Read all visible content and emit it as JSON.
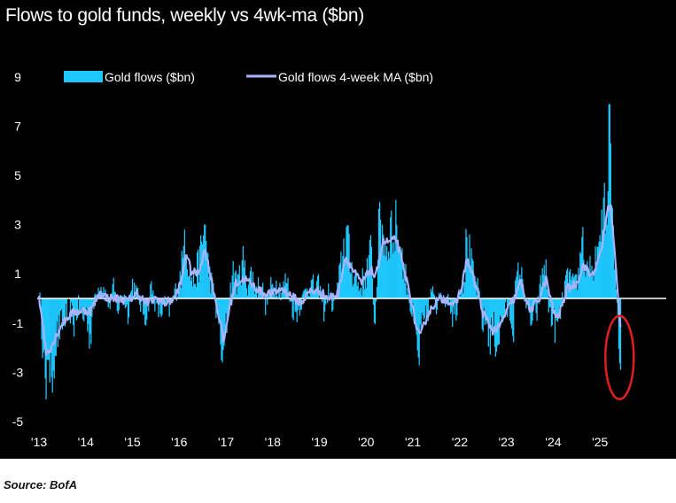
{
  "chart_data": {
    "type": "bar",
    "title": "Flows to gold funds, weekly vs 4wk-ma ($bn)",
    "source": "Source: BofA",
    "xlabel": "",
    "ylabel": "",
    "x_ticks": [
      "'13",
      "'14",
      "'15",
      "'16",
      "'17",
      "'18",
      "'19",
      "'20",
      "'21",
      "'22",
      "'23",
      "'24",
      "'25"
    ],
    "y_ticks": [
      9,
      7,
      5,
      3,
      1,
      -1,
      -3,
      -5
    ],
    "ylim": [
      -5.5,
      10
    ],
    "xlim": [
      2013,
      2025.85
    ],
    "legend_position": "top-left",
    "grid": false,
    "colors": {
      "background": "#000000",
      "bars": "#1ec8ff",
      "ma_line": "#a8b4ff",
      "highlight": "#e02020",
      "zero_line": "#ffffff"
    },
    "series": [
      {
        "name": "Gold flows ($bn)",
        "kind": "bar",
        "anchors": [
          [
            2013.0,
            0.5
          ],
          [
            2013.05,
            -0.8
          ],
          [
            2013.1,
            -2.2
          ],
          [
            2013.15,
            -4.1
          ],
          [
            2013.2,
            -2.5
          ],
          [
            2013.27,
            -3.2
          ],
          [
            2013.35,
            -1.8
          ],
          [
            2013.45,
            -1.2
          ],
          [
            2013.55,
            -0.8
          ],
          [
            2013.65,
            -0.4
          ],
          [
            2013.75,
            -1.0
          ],
          [
            2013.85,
            -0.3
          ],
          [
            2013.95,
            -0.9
          ],
          [
            2014.0,
            -0.4
          ],
          [
            2014.1,
            -1.6
          ],
          [
            2014.2,
            0.2
          ],
          [
            2014.35,
            0.6
          ],
          [
            2014.5,
            -0.3
          ],
          [
            2014.6,
            0.4
          ],
          [
            2014.7,
            -0.5
          ],
          [
            2014.8,
            0.3
          ],
          [
            2014.9,
            -0.6
          ],
          [
            2015.0,
            0.6
          ],
          [
            2015.1,
            0.2
          ],
          [
            2015.2,
            -0.4
          ],
          [
            2015.3,
            -0.7
          ],
          [
            2015.4,
            0.5
          ],
          [
            2015.5,
            -0.3
          ],
          [
            2015.6,
            -0.6
          ],
          [
            2015.7,
            -0.2
          ],
          [
            2015.8,
            -0.5
          ],
          [
            2015.9,
            0.2
          ],
          [
            2016.0,
            0.6
          ],
          [
            2016.08,
            1.5
          ],
          [
            2016.12,
            2.8
          ],
          [
            2016.17,
            1.9
          ],
          [
            2016.22,
            1.2
          ],
          [
            2016.3,
            0.6
          ],
          [
            2016.38,
            1.1
          ],
          [
            2016.45,
            1.7
          ],
          [
            2016.5,
            2.2
          ],
          [
            2016.55,
            3.0
          ],
          [
            2016.6,
            1.5
          ],
          [
            2016.65,
            1.0
          ],
          [
            2016.72,
            0.4
          ],
          [
            2016.8,
            -0.6
          ],
          [
            2016.87,
            -1.2
          ],
          [
            2016.93,
            -2.6
          ],
          [
            2017.0,
            -1.2
          ],
          [
            2017.05,
            -0.6
          ],
          [
            2017.1,
            0.5
          ],
          [
            2017.18,
            1.2
          ],
          [
            2017.25,
            0.5
          ],
          [
            2017.35,
            1.6
          ],
          [
            2017.45,
            0.6
          ],
          [
            2017.55,
            1.0
          ],
          [
            2017.65,
            0.3
          ],
          [
            2017.75,
            0.7
          ],
          [
            2017.85,
            -0.3
          ],
          [
            2017.95,
            0.4
          ],
          [
            2018.1,
            0.6
          ],
          [
            2018.2,
            0.3
          ],
          [
            2018.3,
            0.8
          ],
          [
            2018.4,
            -0.3
          ],
          [
            2018.5,
            -0.6
          ],
          [
            2018.6,
            -0.2
          ],
          [
            2018.7,
            0.3
          ],
          [
            2018.8,
            0.6
          ],
          [
            2018.9,
            0.4
          ],
          [
            2019.0,
            0.5
          ],
          [
            2019.1,
            -0.5
          ],
          [
            2019.2,
            0.3
          ],
          [
            2019.3,
            -0.4
          ],
          [
            2019.4,
            0.5
          ],
          [
            2019.5,
            1.8
          ],
          [
            2019.58,
            2.9
          ],
          [
            2019.65,
            1.4
          ],
          [
            2019.75,
            1.0
          ],
          [
            2019.85,
            0.4
          ],
          [
            2019.95,
            0.8
          ],
          [
            2020.05,
            1.3
          ],
          [
            2020.12,
            2.1
          ],
          [
            2020.18,
            -1.6
          ],
          [
            2020.25,
            2.0
          ],
          [
            2020.3,
            3.2
          ],
          [
            2020.37,
            2.6
          ],
          [
            2020.45,
            1.9
          ],
          [
            2020.52,
            3.3
          ],
          [
            2020.6,
            2.3
          ],
          [
            2020.65,
            3.0
          ],
          [
            2020.72,
            2.1
          ],
          [
            2020.8,
            1.2
          ],
          [
            2020.88,
            0.6
          ],
          [
            2020.95,
            -0.4
          ],
          [
            2021.0,
            -0.8
          ],
          [
            2021.05,
            -1.5
          ],
          [
            2021.12,
            -2.4
          ],
          [
            2021.2,
            -1.2
          ],
          [
            2021.3,
            -0.8
          ],
          [
            2021.4,
            0.4
          ],
          [
            2021.5,
            -0.5
          ],
          [
            2021.58,
            0.7
          ],
          [
            2021.65,
            -0.3
          ],
          [
            2021.75,
            0.3
          ],
          [
            2021.85,
            -0.7
          ],
          [
            2021.95,
            -0.3
          ],
          [
            2022.0,
            0.6
          ],
          [
            2022.1,
            0.8
          ],
          [
            2022.15,
            2.5
          ],
          [
            2022.22,
            1.6
          ],
          [
            2022.3,
            0.8
          ],
          [
            2022.4,
            0.3
          ],
          [
            2022.5,
            -1.1
          ],
          [
            2022.58,
            -0.8
          ],
          [
            2022.65,
            -1.7
          ],
          [
            2022.72,
            -1.2
          ],
          [
            2022.8,
            -1.9
          ],
          [
            2022.88,
            -1.0
          ],
          [
            2022.95,
            -0.6
          ],
          [
            2023.05,
            -0.4
          ],
          [
            2023.15,
            -1.2
          ],
          [
            2023.2,
            0.6
          ],
          [
            2023.28,
            1.1
          ],
          [
            2023.35,
            0.6
          ],
          [
            2023.45,
            -0.5
          ],
          [
            2023.55,
            -1.0
          ],
          [
            2023.65,
            -0.6
          ],
          [
            2023.75,
            0.8
          ],
          [
            2023.83,
            1.5
          ],
          [
            2023.9,
            -0.3
          ],
          [
            2024.0,
            -0.9
          ],
          [
            2024.08,
            -1.3
          ],
          [
            2024.15,
            -0.6
          ],
          [
            2024.25,
            0.5
          ],
          [
            2024.35,
            0.9
          ],
          [
            2024.45,
            0.4
          ],
          [
            2024.55,
            1.0
          ],
          [
            2024.62,
            2.5
          ],
          [
            2024.7,
            1.0
          ],
          [
            2024.78,
            1.6
          ],
          [
            2024.85,
            0.4
          ],
          [
            2024.9,
            1.3
          ],
          [
            2024.95,
            2.1
          ],
          [
            2025.0,
            1.7
          ],
          [
            2025.05,
            2.8
          ],
          [
            2025.1,
            4.7
          ],
          [
            2025.15,
            3.0
          ],
          [
            2025.2,
            7.9
          ],
          [
            2025.25,
            3.8
          ],
          [
            2025.3,
            1.6
          ],
          [
            2025.35,
            0.4
          ],
          [
            2025.4,
            -1.4
          ],
          [
            2025.45,
            -2.9
          ]
        ]
      },
      {
        "name": "Gold flows 4-week MA ($bn)",
        "kind": "line",
        "anchors": [
          [
            2013.0,
            0.1
          ],
          [
            2013.08,
            -1.0
          ],
          [
            2013.15,
            -2.2
          ],
          [
            2013.25,
            -2.0
          ],
          [
            2013.35,
            -1.6
          ],
          [
            2013.5,
            -1.0
          ],
          [
            2013.7,
            -0.6
          ],
          [
            2013.9,
            -0.5
          ],
          [
            2014.1,
            -0.5
          ],
          [
            2014.3,
            0.2
          ],
          [
            2014.5,
            0.0
          ],
          [
            2014.7,
            0.0
          ],
          [
            2014.9,
            -0.1
          ],
          [
            2015.1,
            0.2
          ],
          [
            2015.3,
            -0.2
          ],
          [
            2015.5,
            0.0
          ],
          [
            2015.7,
            -0.2
          ],
          [
            2015.9,
            0.0
          ],
          [
            2016.05,
            0.7
          ],
          [
            2016.15,
            1.9
          ],
          [
            2016.25,
            1.1
          ],
          [
            2016.4,
            1.0
          ],
          [
            2016.55,
            2.0
          ],
          [
            2016.65,
            1.1
          ],
          [
            2016.75,
            0.2
          ],
          [
            2016.85,
            -0.7
          ],
          [
            2016.95,
            -1.8
          ],
          [
            2017.05,
            -0.6
          ],
          [
            2017.2,
            0.6
          ],
          [
            2017.4,
            0.8
          ],
          [
            2017.6,
            0.5
          ],
          [
            2017.8,
            0.2
          ],
          [
            2018.0,
            0.2
          ],
          [
            2018.2,
            0.4
          ],
          [
            2018.4,
            0.1
          ],
          [
            2018.6,
            -0.2
          ],
          [
            2018.8,
            0.3
          ],
          [
            2019.0,
            0.3
          ],
          [
            2019.2,
            0.0
          ],
          [
            2019.4,
            0.2
          ],
          [
            2019.55,
            1.7
          ],
          [
            2019.7,
            1.2
          ],
          [
            2019.9,
            0.6
          ],
          [
            2020.1,
            1.2
          ],
          [
            2020.2,
            0.8
          ],
          [
            2020.35,
            2.3
          ],
          [
            2020.5,
            2.3
          ],
          [
            2020.65,
            2.4
          ],
          [
            2020.8,
            1.2
          ],
          [
            2020.95,
            0.1
          ],
          [
            2021.05,
            -1.0
          ],
          [
            2021.15,
            -1.6
          ],
          [
            2021.3,
            -0.7
          ],
          [
            2021.5,
            -0.1
          ],
          [
            2021.7,
            0.0
          ],
          [
            2021.9,
            -0.3
          ],
          [
            2022.05,
            0.5
          ],
          [
            2022.15,
            1.6
          ],
          [
            2022.3,
            0.8
          ],
          [
            2022.5,
            -0.6
          ],
          [
            2022.7,
            -1.3
          ],
          [
            2022.85,
            -1.2
          ],
          [
            2023.0,
            -0.5
          ],
          [
            2023.2,
            0.1
          ],
          [
            2023.3,
            0.7
          ],
          [
            2023.5,
            -0.5
          ],
          [
            2023.7,
            0.0
          ],
          [
            2023.85,
            0.8
          ],
          [
            2024.0,
            -0.5
          ],
          [
            2024.1,
            -0.8
          ],
          [
            2024.3,
            0.4
          ],
          [
            2024.5,
            0.6
          ],
          [
            2024.65,
            1.4
          ],
          [
            2024.8,
            0.9
          ],
          [
            2024.95,
            1.4
          ],
          [
            2025.05,
            2.2
          ],
          [
            2025.15,
            3.5
          ],
          [
            2025.22,
            3.9
          ],
          [
            2025.3,
            2.2
          ],
          [
            2025.38,
            0.2
          ],
          [
            2025.45,
            -1.4
          ]
        ]
      }
    ],
    "annotations": [
      {
        "kind": "ellipse",
        "x": 2025.42,
        "y": -2.4,
        "note": "circled recent outflows"
      }
    ]
  }
}
